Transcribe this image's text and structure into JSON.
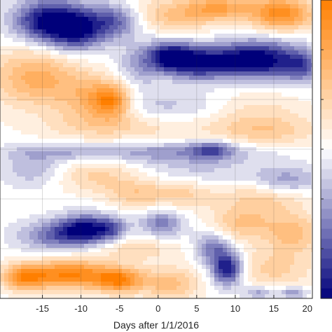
{
  "chart_data": {
    "type": "heatmap",
    "xlabel": "Days after 1/1/2016",
    "xlim": [
      -20.5,
      20
    ],
    "x_ticks": [
      -15,
      -10,
      -5,
      0,
      5,
      10,
      15,
      20
    ],
    "x_tick_labels": [
      "-15",
      "-10",
      "-5",
      "0",
      "5",
      "10",
      "15",
      "20"
    ],
    "ylabel": "",
    "y_gridlines": 5,
    "grid": true,
    "colormap": {
      "negative": "#00007a",
      "mid": "#ffffff",
      "positive": "#ff7f00"
    },
    "colorbar": {
      "visible": true,
      "position": "right"
    },
    "features": [
      {
        "x": -14.5,
        "y": 0.93,
        "sx": 3.0,
        "sy": 0.05,
        "a": -0.95
      },
      {
        "x": -10.5,
        "y": 0.9,
        "sx": 2.6,
        "sy": 0.05,
        "a": -0.85
      },
      {
        "x": -5.5,
        "y": 0.93,
        "sx": 2.4,
        "sy": 0.04,
        "a": -0.6
      },
      {
        "x": 2.0,
        "y": 0.95,
        "sx": 4.0,
        "sy": 0.04,
        "a": 0.45
      },
      {
        "x": 8.0,
        "y": 0.975,
        "sx": 3.0,
        "sy": 0.03,
        "a": 0.6
      },
      {
        "x": 16.0,
        "y": 0.955,
        "sx": 3.0,
        "sy": 0.04,
        "a": 0.9
      },
      {
        "x": 1.5,
        "y": 0.81,
        "sx": 2.0,
        "sy": 0.035,
        "a": -0.95
      },
      {
        "x": 5.5,
        "y": 0.79,
        "sx": 2.6,
        "sy": 0.04,
        "a": -0.95
      },
      {
        "x": 10.0,
        "y": 0.8,
        "sx": 2.2,
        "sy": 0.04,
        "a": -0.55
      },
      {
        "x": 14.0,
        "y": 0.8,
        "sx": 2.8,
        "sy": 0.045,
        "a": -0.95
      },
      {
        "x": 18.5,
        "y": 0.78,
        "sx": 1.6,
        "sy": 0.04,
        "a": -0.6
      },
      {
        "x": -2.5,
        "y": 0.78,
        "sx": 2.0,
        "sy": 0.05,
        "a": -0.35
      },
      {
        "x": -16.0,
        "y": 0.74,
        "sx": 4.0,
        "sy": 0.07,
        "a": 0.6
      },
      {
        "x": -9.0,
        "y": 0.67,
        "sx": 3.0,
        "sy": 0.06,
        "a": 0.45
      },
      {
        "x": -6.0,
        "y": 0.66,
        "sx": 1.8,
        "sy": 0.04,
        "a": 0.75
      },
      {
        "x": 2.0,
        "y": 0.64,
        "sx": 6.0,
        "sy": 0.04,
        "a": -0.25
      },
      {
        "x": 12.0,
        "y": 0.63,
        "sx": 5.0,
        "sy": 0.05,
        "a": 0.25
      },
      {
        "x": -5.0,
        "y": 0.575,
        "sx": 7.0,
        "sy": 0.035,
        "a": 0.3
      },
      {
        "x": 14.0,
        "y": 0.56,
        "sx": 5.0,
        "sy": 0.035,
        "a": 0.35
      },
      {
        "x": -12.0,
        "y": 0.49,
        "sx": 6.0,
        "sy": 0.02,
        "a": -0.3
      },
      {
        "x": 3.0,
        "y": 0.49,
        "sx": 7.0,
        "sy": 0.025,
        "a": -0.35
      },
      {
        "x": 7.0,
        "y": 0.5,
        "sx": 1.8,
        "sy": 0.02,
        "a": -0.5
      },
      {
        "x": -8.0,
        "y": 0.41,
        "sx": 4.0,
        "sy": 0.04,
        "a": 0.35
      },
      {
        "x": -16.0,
        "y": 0.43,
        "sx": 3.0,
        "sy": 0.04,
        "a": -0.3
      },
      {
        "x": 5.0,
        "y": 0.43,
        "sx": 6.0,
        "sy": 0.04,
        "a": -0.2
      },
      {
        "x": 16.5,
        "y": 0.39,
        "sx": 3.0,
        "sy": 0.035,
        "a": -0.45
      },
      {
        "x": -3.0,
        "y": 0.35,
        "sx": 2.6,
        "sy": 0.035,
        "a": 0.35
      },
      {
        "x": 3.0,
        "y": 0.35,
        "sx": 3.0,
        "sy": 0.035,
        "a": 0.35
      },
      {
        "x": 14.0,
        "y": 0.34,
        "sx": 4.0,
        "sy": 0.04,
        "a": 0.4
      },
      {
        "x": -9.5,
        "y": 0.23,
        "sx": 2.4,
        "sy": 0.035,
        "a": -0.95
      },
      {
        "x": -14.0,
        "y": 0.21,
        "sx": 3.0,
        "sy": 0.035,
        "a": -0.5
      },
      {
        "x": -6.0,
        "y": 0.23,
        "sx": 1.6,
        "sy": 0.03,
        "a": -0.45
      },
      {
        "x": 0.5,
        "y": 0.25,
        "sx": 2.0,
        "sy": 0.035,
        "a": -0.5
      },
      {
        "x": -3.0,
        "y": 0.17,
        "sx": 4.0,
        "sy": 0.03,
        "a": 0.3
      },
      {
        "x": 11.0,
        "y": 0.25,
        "sx": 3.0,
        "sy": 0.04,
        "a": 0.45
      },
      {
        "x": 17.5,
        "y": 0.22,
        "sx": 2.4,
        "sy": 0.045,
        "a": 0.5
      },
      {
        "x": 7.0,
        "y": 0.17,
        "sx": 1.6,
        "sy": 0.04,
        "a": -0.5
      },
      {
        "x": 9.0,
        "y": 0.1,
        "sx": 1.4,
        "sy": 0.04,
        "a": -1.0
      },
      {
        "x": -11.5,
        "y": 0.08,
        "sx": 4.0,
        "sy": 0.035,
        "a": 0.95
      },
      {
        "x": -5.0,
        "y": 0.06,
        "sx": 2.2,
        "sy": 0.03,
        "a": 0.8
      },
      {
        "x": -17.5,
        "y": 0.07,
        "sx": 2.0,
        "sy": 0.03,
        "a": 0.7
      },
      {
        "x": 1.5,
        "y": 0.05,
        "sx": 2.6,
        "sy": 0.04,
        "a": 0.5
      },
      {
        "x": 15.0,
        "y": 0.1,
        "sx": 4.0,
        "sy": 0.05,
        "a": 0.35
      },
      {
        "x": 17.5,
        "y": 0.02,
        "sx": 1.2,
        "sy": 0.015,
        "a": -0.5
      },
      {
        "x": 13.0,
        "y": 0.02,
        "sx": 1.4,
        "sy": 0.015,
        "a": -0.4
      }
    ]
  }
}
